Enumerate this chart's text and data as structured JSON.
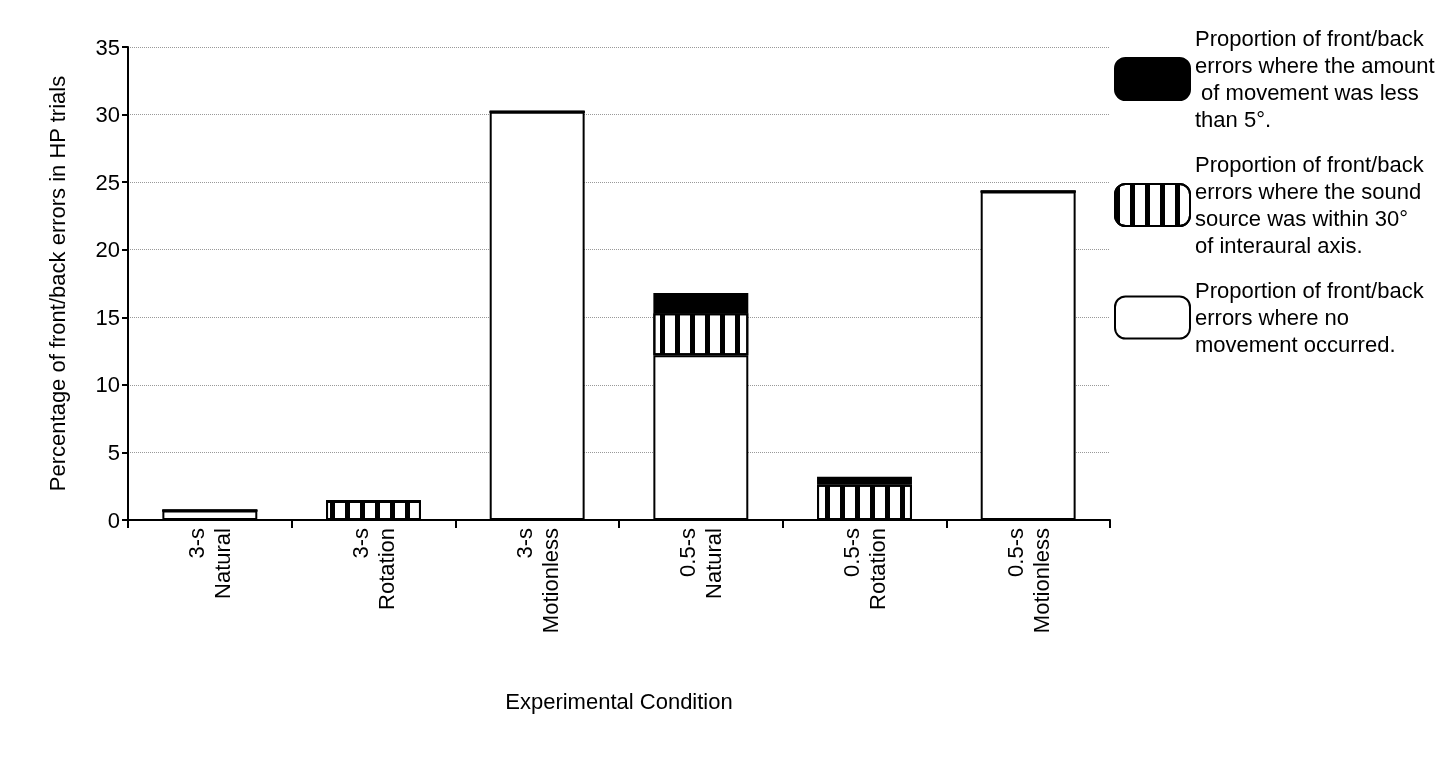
{
  "chart_data": {
    "type": "bar",
    "stacked": true,
    "xlabel": "Experimental Condition",
    "ylabel": "Percentage of front/back errors in HP trials",
    "categories": [
      "3-s\nNatural",
      "3-s\nRotation",
      "3-s\nMotionless",
      "0.5-s\nNatural",
      "0.5-s\nRotation",
      "0.5-s\nMotionless"
    ],
    "series": [
      {
        "name": "Proportion of front/back errors where no movement occurred.",
        "color": "#ffffff",
        "values": [
          0.7,
          0,
          30.2,
          12.2,
          0,
          24.3
        ]
      },
      {
        "name": "Proportion of front/back errors where the sound source was within 30° of interaural axis.",
        "color": "#ffffff",
        "values": [
          0,
          1.4,
          0,
          3.1,
          2.6,
          0
        ]
      },
      {
        "name": "Proportion of front/back errors where the amount of movement was less than 5°.",
        "color": "#000000",
        "values": [
          0,
          0,
          0,
          1.5,
          0.6,
          0
        ]
      }
    ],
    "ylim": [
      0,
      35
    ],
    "yticks": [
      0,
      5,
      10,
      15,
      20,
      25,
      30,
      35
    ],
    "grid": "y",
    "legend": "right"
  }
}
